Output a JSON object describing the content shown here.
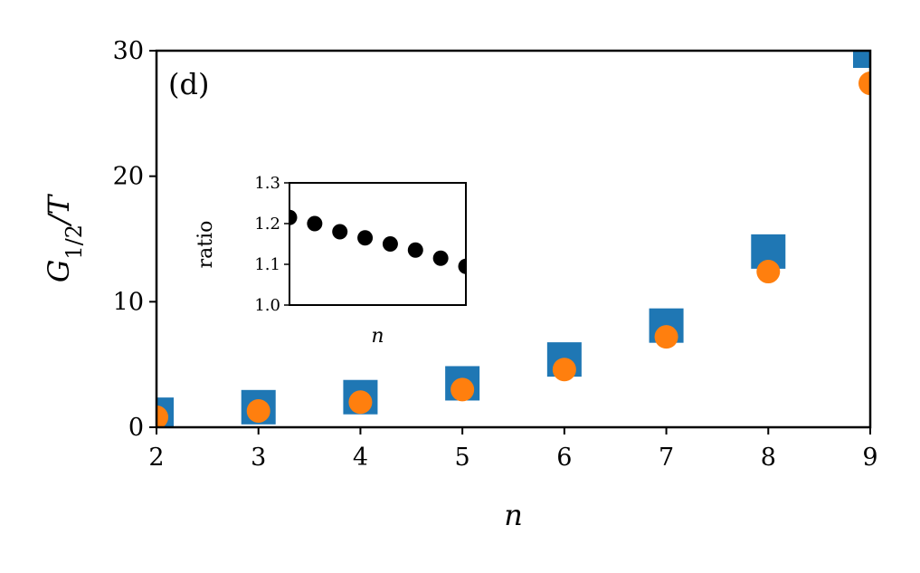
{
  "chart_data": [
    {
      "type": "scatter",
      "panel_label": "(d)",
      "xlabel": "n",
      "ylabel": "G_{1/2}/T",
      "xlim": [
        2,
        9
      ],
      "ylim": [
        0,
        30
      ],
      "xticks": [
        2,
        3,
        4,
        5,
        6,
        7,
        8,
        9
      ],
      "yticks": [
        0,
        10,
        20,
        30
      ],
      "grid": false,
      "series": [
        {
          "marker": "square",
          "color": "#1f77b4",
          "x": [
            2,
            3,
            4,
            5,
            6,
            7,
            8,
            9
          ],
          "y": [
            1.0,
            1.6,
            2.4,
            3.5,
            5.4,
            8.1,
            14.0,
            30.0
          ]
        },
        {
          "marker": "circle",
          "color": "#ff7f0e",
          "x": [
            2,
            3,
            4,
            5,
            6,
            7,
            8,
            9
          ],
          "y": [
            0.8,
            1.3,
            2.0,
            3.0,
            4.6,
            7.2,
            12.4,
            27.4
          ]
        }
      ]
    },
    {
      "type": "scatter",
      "inset": true,
      "xlabel": "n",
      "ylabel": "ratio",
      "xlim": [
        2,
        9
      ],
      "ylim": [
        1.0,
        1.3
      ],
      "yticks": [
        "1.0",
        "1.1",
        "1.2",
        "1.3"
      ],
      "grid": false,
      "series": [
        {
          "marker": "circle",
          "color": "#000000",
          "x": [
            2,
            3,
            4,
            5,
            6,
            7,
            8,
            9
          ],
          "y": [
            1.215,
            1.2,
            1.18,
            1.165,
            1.15,
            1.135,
            1.115,
            1.095
          ]
        }
      ]
    }
  ]
}
